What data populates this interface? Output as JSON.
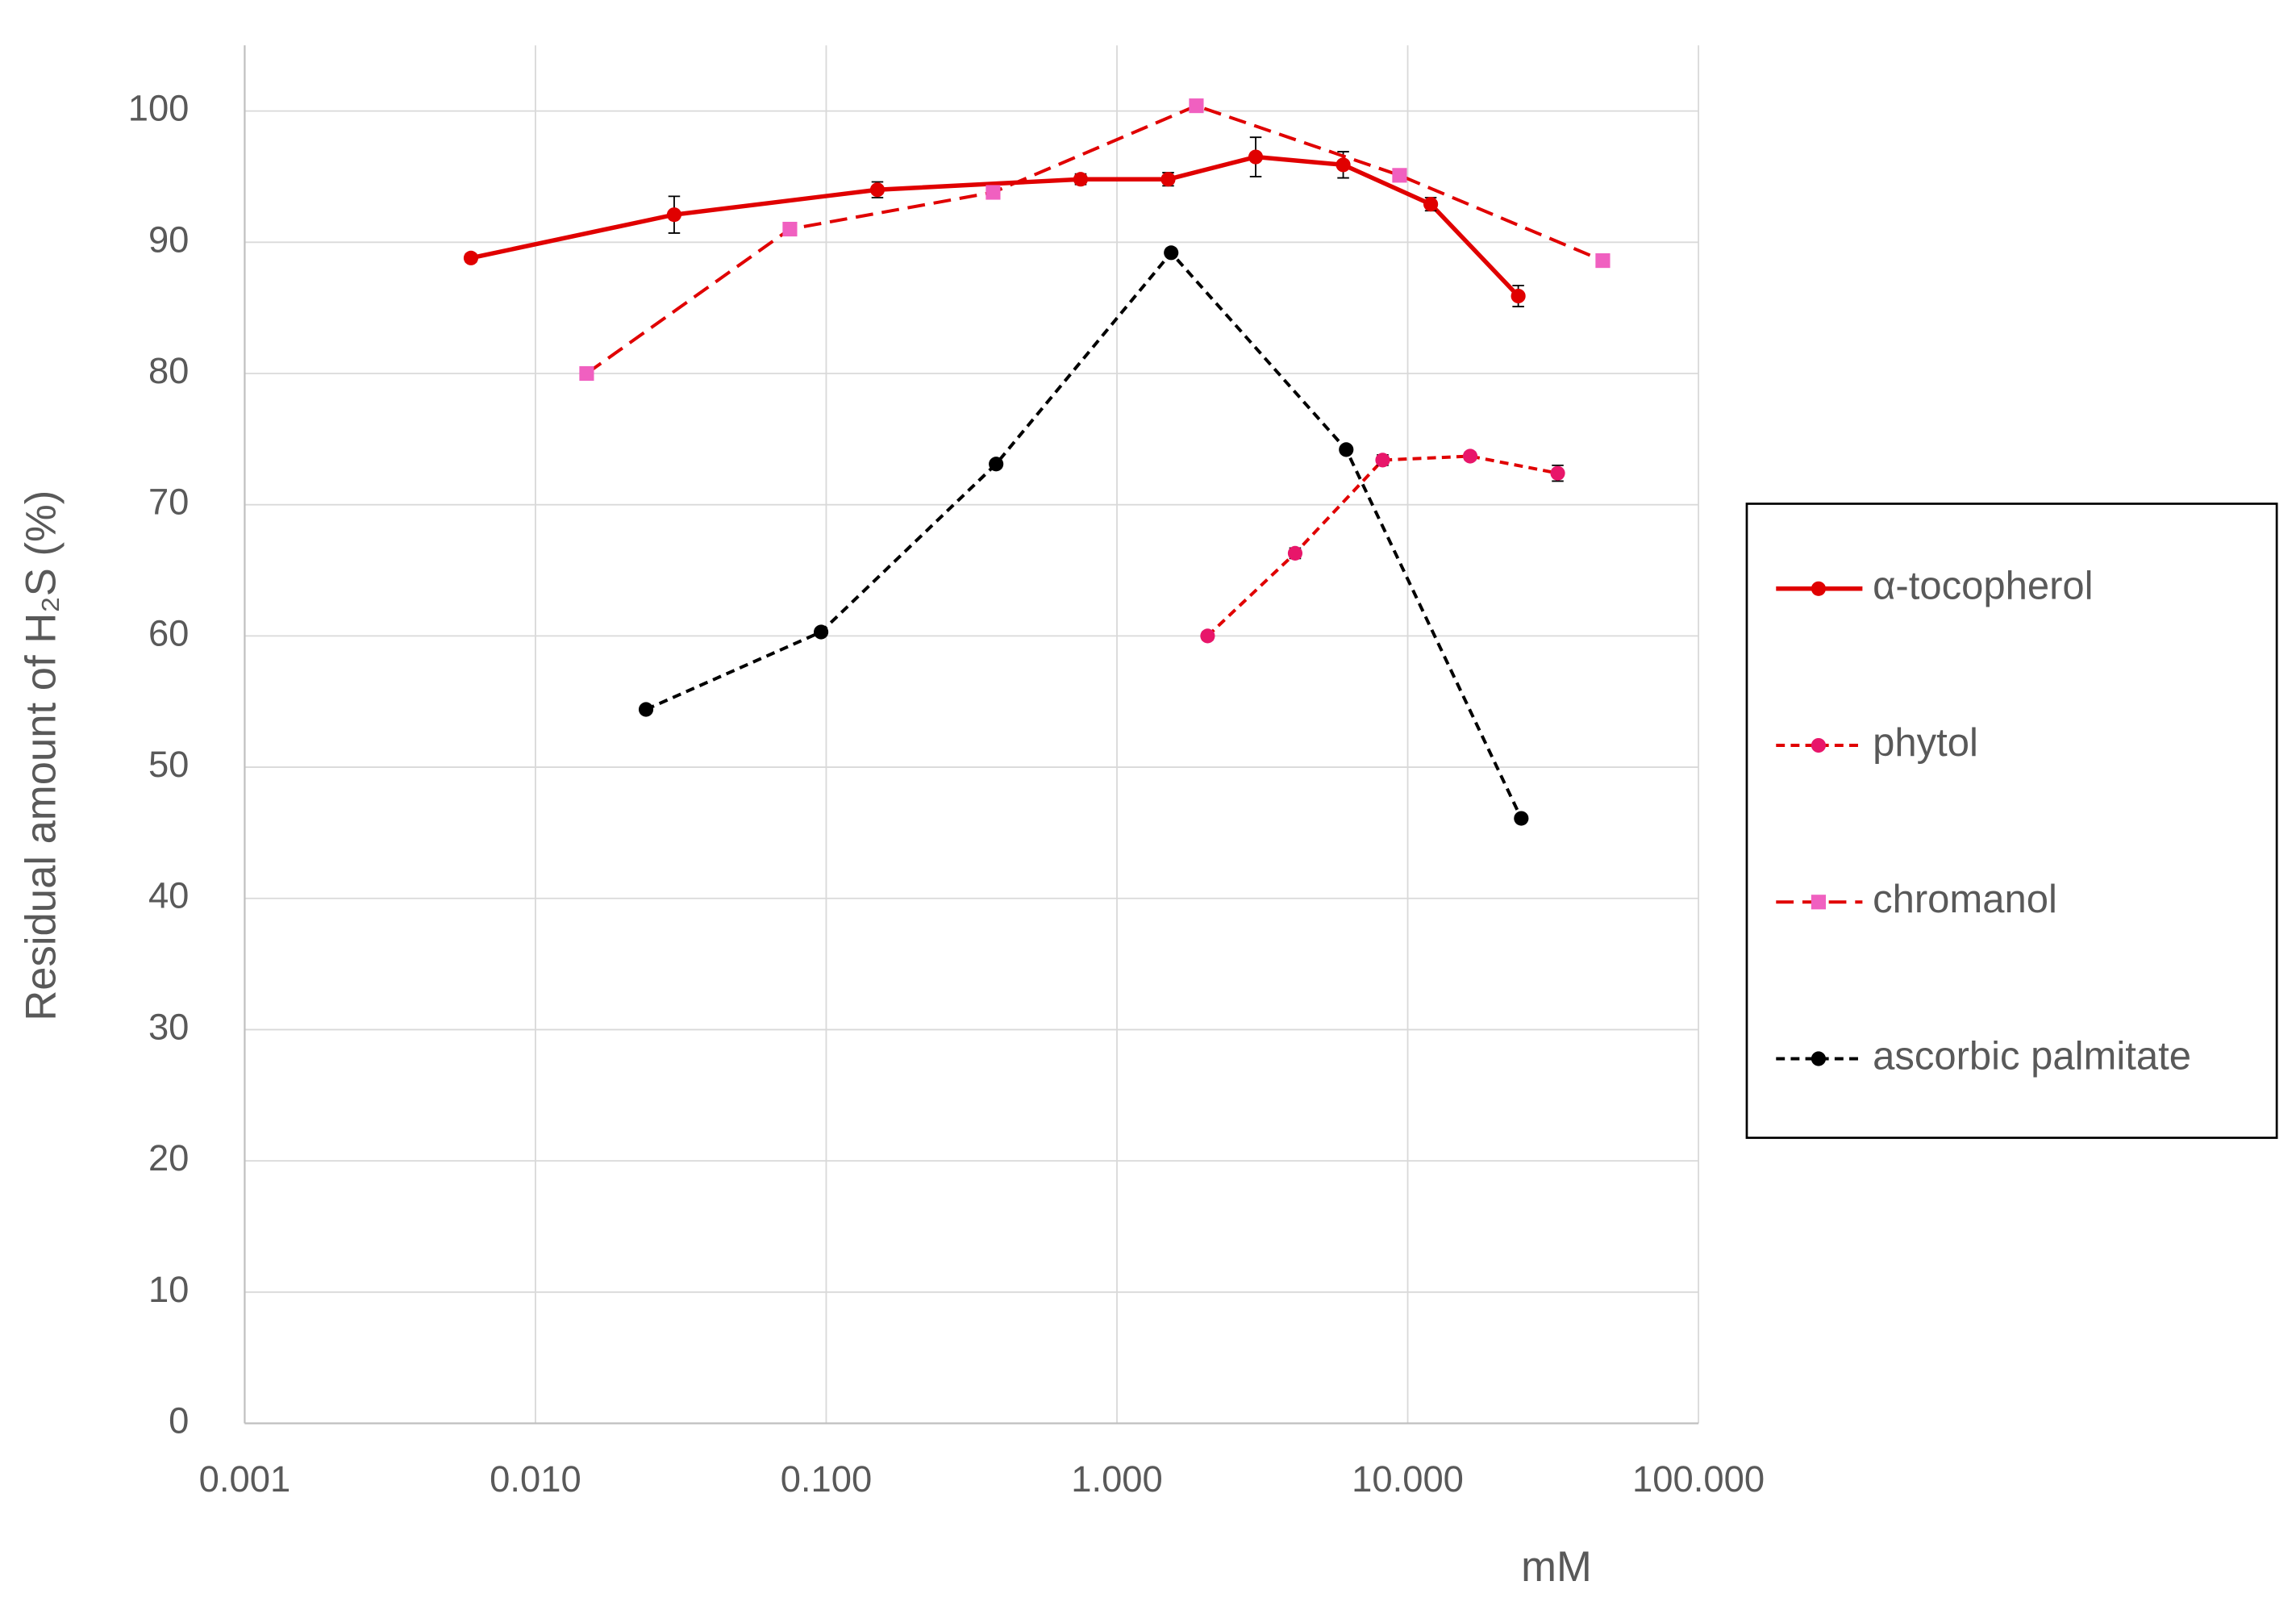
{
  "chart_data": {
    "type": "line",
    "x_label": "mM",
    "y_label": "Residual amount of H₂S (%)",
    "x_scale": "log",
    "xlim": [
      0.001,
      100
    ],
    "xticks": [
      {
        "value": 0.001,
        "label": "0.001"
      },
      {
        "value": 0.01,
        "label": "0.010"
      },
      {
        "value": 0.1,
        "label": "0.100"
      },
      {
        "value": 1,
        "label": "1.000"
      },
      {
        "value": 10,
        "label": "10.000"
      },
      {
        "value": 100,
        "label": "100.000"
      }
    ],
    "ylim": [
      0,
      105
    ],
    "yticks": [
      0,
      10,
      20,
      30,
      40,
      50,
      60,
      70,
      80,
      90,
      100
    ],
    "grid": true,
    "legend": "right",
    "series": [
      {
        "name": "α-tocopherol",
        "color": "#e00000",
        "marker_color": "#e00000",
        "marker": "circle",
        "dash": "solid",
        "x": [
          0.006,
          0.03,
          0.15,
          0.75,
          1.5,
          3,
          6,
          12,
          24
        ],
        "values": [
          88.8,
          92.1,
          94.0,
          94.8,
          94.8,
          96.5,
          95.9,
          92.9,
          85.9
        ],
        "errors": [
          0.3,
          1.4,
          0.6,
          0.4,
          0.5,
          1.5,
          1.0,
          0.5,
          0.8
        ]
      },
      {
        "name": "phytol",
        "color": "#e00000",
        "marker_color": "#e8166a",
        "marker": "circle",
        "dash": "short",
        "x": [
          2.05,
          4.1,
          8.2,
          16.4,
          32.8
        ],
        "values": [
          60.0,
          66.3,
          73.4,
          73.7,
          72.4
        ],
        "errors": [
          0.3,
          0.4,
          0.4,
          0.3,
          0.6
        ]
      },
      {
        "name": "chromanol",
        "color": "#e00000",
        "marker_color": "#f060c0",
        "marker": "square",
        "dash": "long",
        "x": [
          0.015,
          0.075,
          0.375,
          1.875,
          9.375,
          46.875
        ],
        "values": [
          80.0,
          91.0,
          93.8,
          100.4,
          95.1,
          88.6
        ]
      },
      {
        "name": "ascorbic palmitate",
        "color": "#000000",
        "marker_color": "#000000",
        "marker": "circle",
        "dash": "short",
        "x": [
          0.024,
          0.096,
          0.384,
          1.536,
          6.144,
          24.576
        ],
        "values": [
          54.4,
          60.3,
          73.1,
          89.2,
          74.2,
          46.1
        ]
      }
    ]
  }
}
